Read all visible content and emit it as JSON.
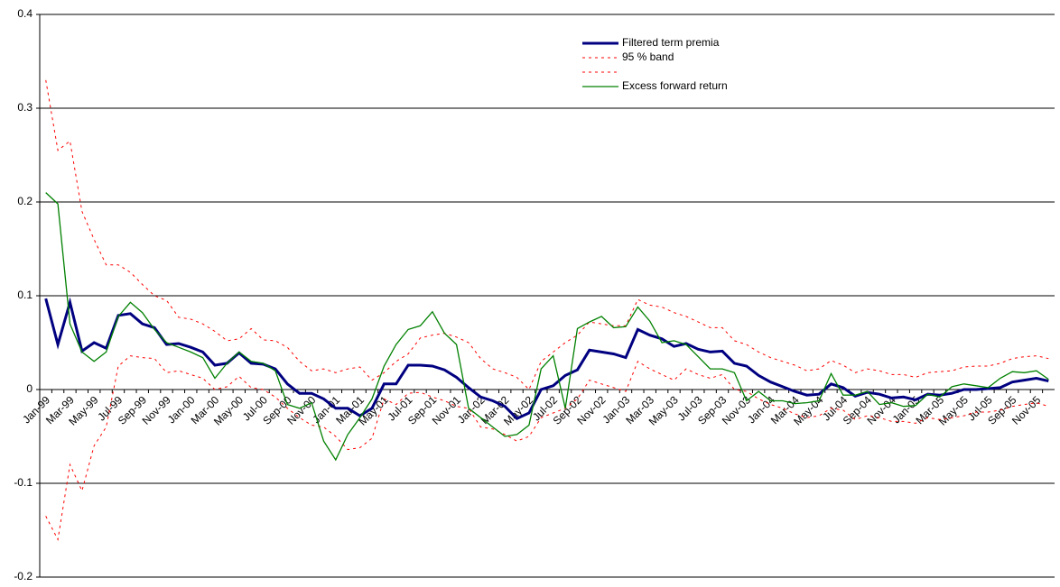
{
  "chart_data": {
    "type": "line",
    "categories": [
      "Jan-99",
      null,
      "Mar-99",
      null,
      "May-99",
      null,
      "Jul-99",
      null,
      "Sep-99",
      null,
      "Nov-99",
      null,
      "Jan-00",
      null,
      "Mar-00",
      null,
      "May-00",
      null,
      "Jul-00",
      null,
      "Sep-00",
      null,
      "Nov-00",
      null,
      "Jan-01",
      null,
      "Mar-01",
      null,
      "May-01",
      null,
      "Jul-01",
      null,
      "Sep-01",
      null,
      "Nov-01",
      null,
      "Jan-02",
      null,
      "Mar-02",
      null,
      "May-02",
      null,
      "Jul-02",
      null,
      "Sep-02",
      null,
      "Nov-02",
      null,
      "Jan-03",
      null,
      "Mar-03",
      null,
      "May-03",
      null,
      "Jul-03",
      null,
      "Sep-03",
      null,
      "Nov-03",
      null,
      "Jan-04",
      null,
      "Mar-04",
      null,
      "May-04",
      null,
      "Jul-04",
      null,
      "Sep-04",
      null,
      "Nov-04",
      null,
      "Jan-05",
      null,
      "Mar-05",
      null,
      "May-05",
      null,
      "Jul-05",
      null,
      "Sep-05",
      null,
      "Nov-05",
      null
    ],
    "series": [
      {
        "name": "Filtered term premia",
        "color": "#000080",
        "width": 3,
        "dashed": false,
        "values": [
          0.097,
          0.048,
          0.093,
          0.041,
          0.05,
          0.044,
          0.079,
          0.081,
          0.07,
          0.066,
          0.048,
          0.049,
          0.045,
          0.04,
          0.026,
          0.028,
          0.039,
          0.028,
          0.027,
          0.022,
          0.006,
          -0.004,
          -0.004,
          -0.01,
          -0.02,
          -0.02,
          -0.028,
          -0.02,
          0.006,
          0.006,
          0.026,
          0.026,
          0.025,
          0.021,
          0.013,
          0.002,
          -0.008,
          -0.012,
          -0.018,
          -0.031,
          -0.025,
          0.0,
          0.004,
          0.015,
          0.021,
          0.042,
          0.04,
          0.038,
          0.034,
          0.064,
          0.058,
          0.054,
          0.046,
          0.049,
          0.043,
          0.04,
          0.041,
          0.028,
          0.025,
          0.015,
          0.008,
          0.003,
          -0.002,
          -0.006,
          -0.005,
          0.006,
          0.002,
          -0.007,
          -0.003,
          -0.005,
          -0.009,
          -0.008,
          -0.011,
          -0.005,
          -0.006,
          -0.004,
          0.0,
          0.0,
          0.001,
          0.002,
          0.008,
          0.01,
          0.012,
          0.009
        ]
      },
      {
        "name": "95 % band",
        "color": "#ff0000",
        "width": 1,
        "dashed": true,
        "values": [
          0.33,
          0.255,
          0.265,
          0.19,
          0.16,
          0.133,
          0.133,
          0.125,
          0.112,
          0.1,
          0.095,
          0.077,
          0.075,
          0.07,
          0.062,
          0.052,
          0.054,
          0.065,
          0.053,
          0.052,
          0.045,
          0.03,
          0.02,
          0.022,
          0.018,
          0.022,
          0.024,
          0.01,
          0.018,
          0.03,
          0.038,
          0.055,
          0.058,
          0.06,
          0.056,
          0.05,
          0.033,
          0.022,
          0.018,
          0.013,
          0.0,
          0.03,
          0.04,
          0.05,
          0.058,
          0.072,
          0.07,
          0.068,
          0.068,
          0.096,
          0.09,
          0.088,
          0.082,
          0.078,
          0.072,
          0.066,
          0.066,
          0.052,
          0.048,
          0.04,
          0.034,
          0.03,
          0.026,
          0.02,
          0.022,
          0.031,
          0.026,
          0.018,
          0.022,
          0.02,
          0.016,
          0.016,
          0.013,
          0.018,
          0.019,
          0.02,
          0.024,
          0.025,
          0.025,
          0.028,
          0.033,
          0.035,
          0.036,
          0.033
        ]
      },
      {
        "color": "#ff0000",
        "width": 1,
        "dashed": true,
        "values": [
          -0.135,
          -0.16,
          -0.08,
          -0.108,
          -0.06,
          -0.04,
          0.025,
          0.036,
          0.034,
          0.033,
          0.018,
          0.02,
          0.016,
          0.012,
          0.0,
          0.003,
          0.014,
          0.002,
          0.0,
          -0.008,
          -0.02,
          -0.03,
          -0.038,
          -0.04,
          -0.05,
          -0.064,
          -0.062,
          -0.052,
          -0.01,
          -0.016,
          -0.004,
          -0.003,
          -0.008,
          -0.012,
          -0.018,
          -0.02,
          -0.04,
          -0.042,
          -0.048,
          -0.055,
          -0.05,
          -0.03,
          -0.025,
          -0.02,
          -0.01,
          0.01,
          0.006,
          0.002,
          -0.002,
          0.03,
          0.022,
          0.016,
          0.01,
          0.022,
          0.016,
          0.012,
          0.016,
          0.0,
          -0.002,
          -0.01,
          -0.016,
          -0.02,
          -0.026,
          -0.03,
          -0.028,
          -0.02,
          -0.022,
          -0.032,
          -0.028,
          -0.03,
          -0.034,
          -0.034,
          -0.036,
          -0.03,
          -0.032,
          -0.03,
          -0.028,
          -0.024,
          -0.024,
          -0.022,
          -0.018,
          -0.016,
          -0.014,
          -0.018
        ]
      },
      {
        "name": "Excess forward return",
        "color": "#008000",
        "width": 1.3,
        "dashed": false,
        "values": [
          0.21,
          0.198,
          0.07,
          0.04,
          0.03,
          0.04,
          0.078,
          0.093,
          0.082,
          0.064,
          0.05,
          0.045,
          0.04,
          0.034,
          0.012,
          0.028,
          0.04,
          0.03,
          0.028,
          0.02,
          -0.016,
          -0.02,
          -0.014,
          -0.055,
          -0.075,
          -0.048,
          -0.03,
          -0.01,
          0.025,
          0.048,
          0.064,
          0.068,
          0.083,
          0.06,
          0.048,
          -0.02,
          -0.03,
          -0.04,
          -0.05,
          -0.048,
          -0.038,
          0.022,
          0.036,
          -0.02,
          0.065,
          0.072,
          0.078,
          0.066,
          0.067,
          0.088,
          0.073,
          0.05,
          0.052,
          0.048,
          0.035,
          0.022,
          0.022,
          0.018,
          -0.012,
          -0.002,
          -0.012,
          -0.012,
          -0.015,
          -0.014,
          -0.012,
          0.017,
          -0.006,
          -0.006,
          -0.002,
          -0.016,
          -0.014,
          -0.018,
          -0.017,
          -0.005,
          -0.008,
          0.003,
          0.006,
          0.004,
          0.002,
          0.012,
          0.019,
          0.018,
          0.02,
          0.011
        ]
      }
    ],
    "ylim": [
      -0.2,
      0.4
    ],
    "yticks": [
      0.4,
      0.3,
      0.2,
      0.1,
      0,
      -0.1,
      -0.2
    ],
    "grid": true,
    "legend": "upper-right"
  }
}
